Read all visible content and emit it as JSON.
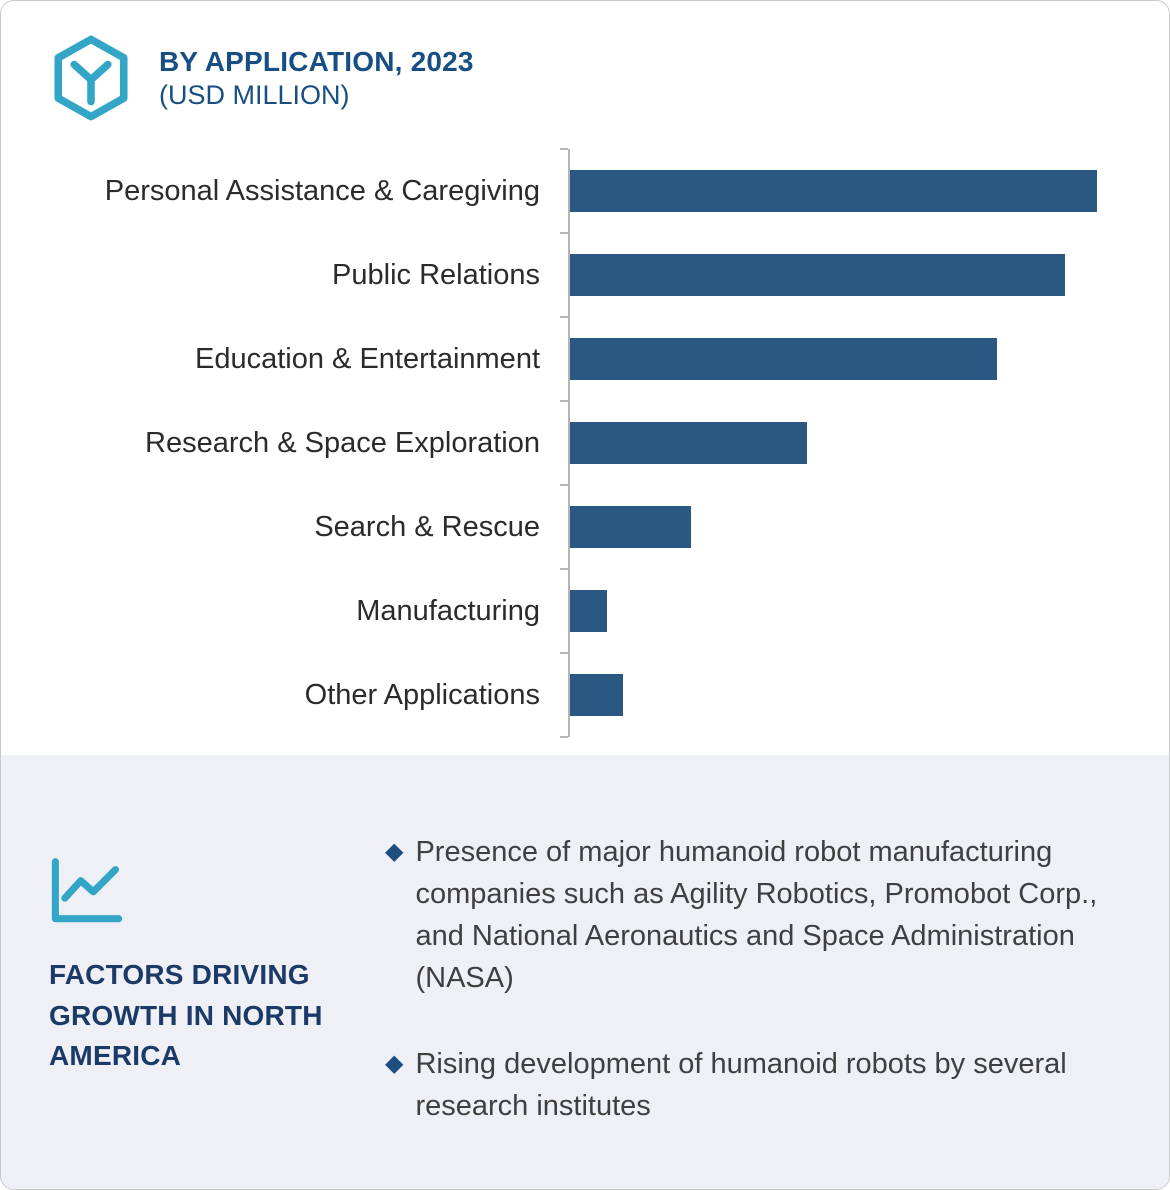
{
  "header": {
    "title": "BY APPLICATION, 2023",
    "subtitle": "(USD MILLION)",
    "logo_icon": "hexagon-y-logo-icon",
    "accent_teal": "#33a6c7",
    "title_color": "#174e84"
  },
  "chart_data": {
    "type": "bar",
    "orientation": "horizontal",
    "title": "BY APPLICATION, 2023 (USD MILLION)",
    "categories": [
      "Personal Assistance & Caregiving",
      "Public Relations",
      "Education & Entertainment",
      "Research & Space Exploration",
      "Search & Rescue",
      "Manufacturing",
      "Other Applications"
    ],
    "values": [
      100,
      94,
      81,
      45,
      23,
      7,
      10
    ],
    "xlim": [
      0,
      100
    ],
    "value_labels": false,
    "grid": false,
    "legend": false,
    "bar_color": "#2b5783",
    "axis_color": "#b4b4b4",
    "note": "values are relative estimates from bar lengths; no numeric labels shown"
  },
  "factors": {
    "icon": "line-chart-icon",
    "title": "FACTORS DRIVING GROWTH IN NORTH AMERICA",
    "bullet_marker": "◆",
    "bullets": [
      "Presence of major humanoid robot manufacturing companies such as Agility Robotics, Promobot Corp., and National Aeronautics and Space Administration (NASA)",
      "Rising development of humanoid robots by several research institutes"
    ],
    "panel_bg": "#eef0f5",
    "title_color": "#1b3a68",
    "marker_color": "#1e4e7e"
  }
}
